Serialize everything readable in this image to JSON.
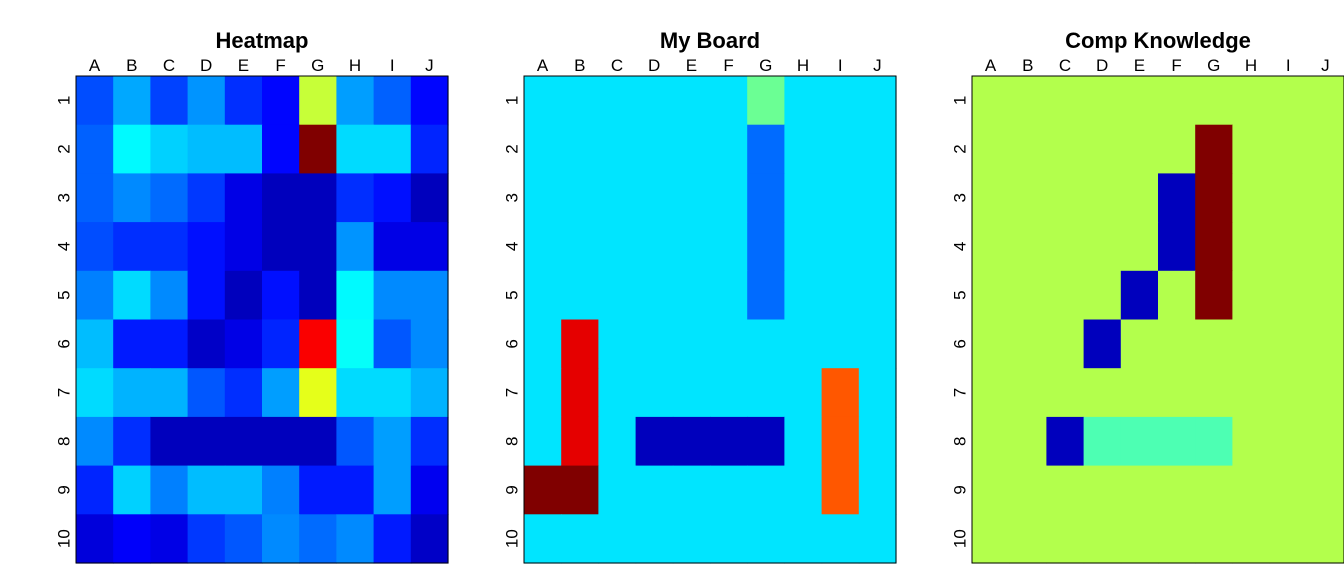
{
  "chart_data": [
    {
      "type": "heatmap",
      "title": "Heatmap",
      "columns": [
        "A",
        "B",
        "C",
        "D",
        "E",
        "F",
        "G",
        "H",
        "I",
        "J"
      ],
      "rows": [
        "1",
        "2",
        "3",
        "4",
        "5",
        "6",
        "7",
        "8",
        "9",
        "10"
      ],
      "colormap": "jet",
      "value_range": [
        0,
        1
      ],
      "grid": false,
      "values": [
        [
          0.2,
          0.29,
          0.19,
          0.27,
          0.17,
          0.13,
          0.57,
          0.28,
          0.22,
          0.13
        ],
        [
          0.22,
          0.37,
          0.33,
          0.31,
          0.31,
          0.13,
          1.0,
          0.34,
          0.34,
          0.16
        ],
        [
          0.22,
          0.26,
          0.23,
          0.18,
          0.1,
          0.06,
          0.06,
          0.17,
          0.14,
          0.06
        ],
        [
          0.2,
          0.17,
          0.17,
          0.14,
          0.1,
          0.06,
          0.06,
          0.27,
          0.1,
          0.1
        ],
        [
          0.25,
          0.34,
          0.26,
          0.14,
          0.06,
          0.14,
          0.06,
          0.37,
          0.26,
          0.26
        ],
        [
          0.31,
          0.15,
          0.15,
          0.07,
          0.1,
          0.16,
          0.88,
          0.38,
          0.21,
          0.26
        ],
        [
          0.34,
          0.3,
          0.3,
          0.21,
          0.17,
          0.28,
          0.6,
          0.34,
          0.34,
          0.3
        ],
        [
          0.26,
          0.17,
          0.06,
          0.06,
          0.06,
          0.06,
          0.06,
          0.21,
          0.28,
          0.17
        ],
        [
          0.16,
          0.33,
          0.25,
          0.31,
          0.31,
          0.25,
          0.15,
          0.15,
          0.28,
          0.11
        ],
        [
          0.09,
          0.12,
          0.1,
          0.18,
          0.21,
          0.26,
          0.23,
          0.26,
          0.15,
          0.07
        ]
      ]
    },
    {
      "type": "heatmap",
      "title": "My Board",
      "columns": [
        "A",
        "B",
        "C",
        "D",
        "E",
        "F",
        "G",
        "H",
        "I",
        "J"
      ],
      "rows": [
        "1",
        "2",
        "3",
        "4",
        "5",
        "6",
        "7",
        "8",
        "9",
        "10"
      ],
      "colormap": "jet",
      "value_range": [
        0,
        1
      ],
      "grid": false,
      "values": [
        [
          0.35,
          0.35,
          0.35,
          0.35,
          0.35,
          0.35,
          0.48,
          0.35,
          0.35,
          0.35
        ],
        [
          0.35,
          0.35,
          0.35,
          0.35,
          0.35,
          0.35,
          0.23,
          0.35,
          0.35,
          0.35
        ],
        [
          0.35,
          0.35,
          0.35,
          0.35,
          0.35,
          0.35,
          0.23,
          0.35,
          0.35,
          0.35
        ],
        [
          0.35,
          0.35,
          0.35,
          0.35,
          0.35,
          0.35,
          0.23,
          0.35,
          0.35,
          0.35
        ],
        [
          0.35,
          0.35,
          0.35,
          0.35,
          0.35,
          0.35,
          0.23,
          0.35,
          0.35,
          0.35
        ],
        [
          0.35,
          0.9,
          0.35,
          0.35,
          0.35,
          0.35,
          0.35,
          0.35,
          0.35,
          0.35
        ],
        [
          0.35,
          0.9,
          0.35,
          0.35,
          0.35,
          0.35,
          0.35,
          0.35,
          0.79,
          0.35
        ],
        [
          0.35,
          0.9,
          0.35,
          0.06,
          0.06,
          0.06,
          0.06,
          0.35,
          0.79,
          0.35
        ],
        [
          1.0,
          1.0,
          0.35,
          0.35,
          0.35,
          0.35,
          0.35,
          0.35,
          0.79,
          0.35
        ],
        [
          0.35,
          0.35,
          0.35,
          0.35,
          0.35,
          0.35,
          0.35,
          0.35,
          0.35,
          0.35
        ]
      ]
    },
    {
      "type": "heatmap",
      "title": "Comp Knowledge",
      "columns": [
        "A",
        "B",
        "C",
        "D",
        "E",
        "F",
        "G",
        "H",
        "I",
        "J"
      ],
      "rows": [
        "1",
        "2",
        "3",
        "4",
        "5",
        "6",
        "7",
        "8",
        "9",
        "10"
      ],
      "colormap": "jet",
      "value_range": [
        0,
        1
      ],
      "grid": false,
      "values": [
        [
          0.55,
          0.55,
          0.55,
          0.55,
          0.55,
          0.55,
          0.55,
          0.55,
          0.55,
          0.55
        ],
        [
          0.55,
          0.55,
          0.55,
          0.55,
          0.55,
          0.55,
          1.0,
          0.55,
          0.55,
          0.55
        ],
        [
          0.55,
          0.55,
          0.55,
          0.55,
          0.55,
          0.06,
          1.0,
          0.55,
          0.55,
          0.55
        ],
        [
          0.55,
          0.55,
          0.55,
          0.55,
          0.55,
          0.06,
          1.0,
          0.55,
          0.55,
          0.55
        ],
        [
          0.55,
          0.55,
          0.55,
          0.55,
          0.06,
          0.55,
          1.0,
          0.55,
          0.55,
          0.55
        ],
        [
          0.55,
          0.55,
          0.55,
          0.06,
          0.55,
          0.55,
          0.55,
          0.55,
          0.55,
          0.55
        ],
        [
          0.55,
          0.55,
          0.55,
          0.55,
          0.55,
          0.55,
          0.55,
          0.55,
          0.55,
          0.55
        ],
        [
          0.55,
          0.55,
          0.06,
          0.45,
          0.45,
          0.45,
          0.45,
          0.55,
          0.55,
          0.55
        ],
        [
          0.55,
          0.55,
          0.55,
          0.55,
          0.55,
          0.55,
          0.55,
          0.55,
          0.55,
          0.55
        ],
        [
          0.55,
          0.55,
          0.55,
          0.55,
          0.55,
          0.55,
          0.55,
          0.55,
          0.55,
          0.55
        ]
      ]
    }
  ]
}
